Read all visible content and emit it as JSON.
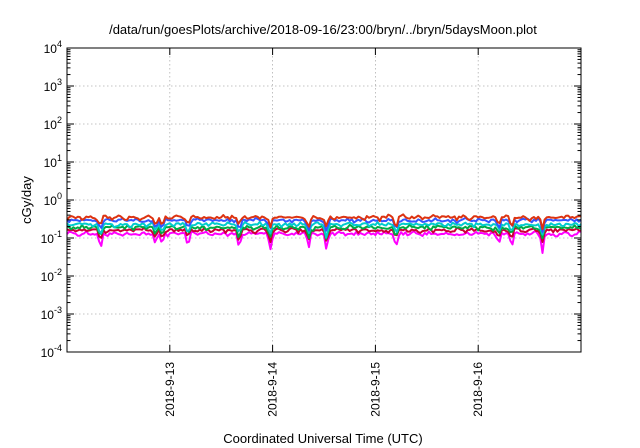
{
  "chart_data": {
    "type": "line",
    "title": "/data/run/goesPlots/archive/2018-09-16/23:00/bryn/../bryn/5daysMoon.plot",
    "xlabel": "Coordinated Universal Time (UTC)",
    "ylabel": "cGy/day",
    "yscale": "log",
    "ylim": [
      0.0001,
      10000
    ],
    "y_ticks": [
      {
        "base": "10",
        "exp": "-4"
      },
      {
        "base": "10",
        "exp": "-3"
      },
      {
        "base": "10",
        "exp": "-2"
      },
      {
        "base": "10",
        "exp": "-1"
      },
      {
        "base": "10",
        "exp": "0"
      },
      {
        "base": "10",
        "exp": "1"
      },
      {
        "base": "10",
        "exp": "2"
      },
      {
        "base": "10",
        "exp": "3"
      },
      {
        "base": "10",
        "exp": "4"
      }
    ],
    "xlim": [
      0,
      1
    ],
    "x_ticks": [
      {
        "label": "2018-9-13",
        "pos": 0.2
      },
      {
        "label": "2018-9-14",
        "pos": 0.4
      },
      {
        "label": "2018-9-15",
        "pos": 0.6
      },
      {
        "label": "2018-9-16",
        "pos": 0.8
      }
    ],
    "grid": true,
    "series": [
      {
        "color": "#ff00ff",
        "baseline": 0.13
      },
      {
        "color": "#cc0033",
        "baseline": 0.16
      },
      {
        "color": "#00aa44",
        "baseline": 0.19
      },
      {
        "color": "#00cccc",
        "baseline": 0.23
      },
      {
        "color": "#3355ff",
        "baseline": 0.29
      },
      {
        "color": "#dd3311",
        "baseline": 0.35
      }
    ],
    "dips": [
      {
        "x": 0.065,
        "depth": 0.6
      },
      {
        "x": 0.172,
        "depth": 0.45
      },
      {
        "x": 0.185,
        "depth": 0.5
      },
      {
        "x": 0.235,
        "depth": 0.5
      },
      {
        "x": 0.335,
        "depth": 0.55
      },
      {
        "x": 0.395,
        "depth": 0.6
      },
      {
        "x": 0.47,
        "depth": 0.6
      },
      {
        "x": 0.505,
        "depth": 0.65
      },
      {
        "x": 0.64,
        "depth": 0.55
      },
      {
        "x": 0.84,
        "depth": 0.45
      },
      {
        "x": 0.865,
        "depth": 0.5
      },
      {
        "x": 0.925,
        "depth": 0.6
      }
    ]
  }
}
